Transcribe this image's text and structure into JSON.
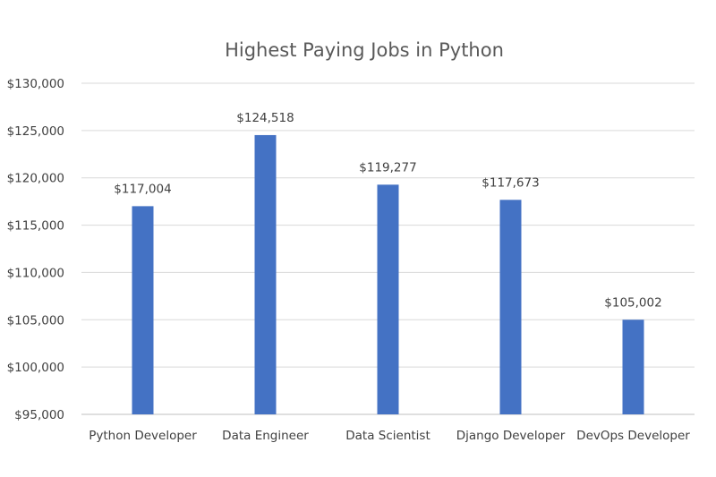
{
  "chart_data": {
    "type": "bar",
    "title": "Highest Paying Jobs in Python",
    "xlabel": "",
    "ylabel": "",
    "categories": [
      "Python Developer",
      "Data Engineer",
      "Data Scientist",
      "Django Developer",
      "DevOps Developer"
    ],
    "values": [
      117004,
      124518,
      119277,
      117673,
      105002
    ],
    "data_labels": [
      "$117,004",
      "$124,518",
      "$119,277",
      "$117,673",
      "$105,002"
    ],
    "ylim": [
      95000,
      130000
    ],
    "yticks": [
      95000,
      100000,
      105000,
      110000,
      115000,
      120000,
      125000,
      130000
    ],
    "ytick_labels": [
      "$95,000",
      "$100,000",
      "$105,000",
      "$110,000",
      "$115,000",
      "$120,000",
      "$125,000",
      "$130,000"
    ],
    "grid": true,
    "legend": "none",
    "bar_color": "#4472c4",
    "grid_color": "#d9d9d9"
  }
}
